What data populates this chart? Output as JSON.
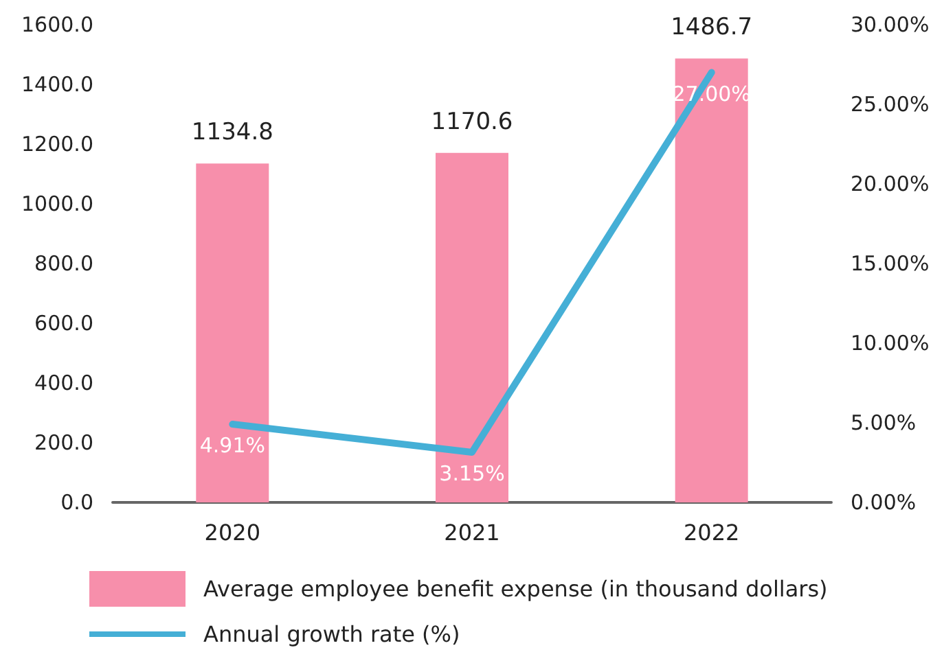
{
  "chart_data": {
    "type": "bar",
    "categories": [
      "2020",
      "2021",
      "2022"
    ],
    "series": [
      {
        "name": "Average employee benefit expense (in thousand dollars)",
        "color": "#f78fab",
        "values": [
          1134.8,
          1170.6,
          1486.7
        ],
        "data_labels": true
      },
      {
        "name": "Annual growth rate (%)",
        "type": "line",
        "axis": "y2",
        "color": "#45afd6",
        "values": [
          4.91,
          3.15,
          27.0
        ],
        "value_labels": [
          "4.91%",
          "3.15%",
          "27.00%"
        ],
        "marker": "none",
        "line_style": "solid"
      }
    ],
    "ylim": [
      0,
      1600
    ],
    "yticks": [
      {
        "value": 0,
        "label": "0.0"
      },
      {
        "value": 200,
        "label": "200.0"
      },
      {
        "value": 400,
        "label": "400.0"
      },
      {
        "value": 600,
        "label": "600.0"
      },
      {
        "value": 800,
        "label": "800.0"
      },
      {
        "value": 1000,
        "label": "1000.0"
      },
      {
        "value": 1200,
        "label": "1200.0"
      },
      {
        "value": 1400,
        "label": "1400.0"
      },
      {
        "value": 1600,
        "label": "1600.0"
      }
    ],
    "y2lim": [
      0,
      30
    ],
    "y2ticks": [
      {
        "value": 0,
        "label": "0.00%"
      },
      {
        "value": 5,
        "label": "5.00%"
      },
      {
        "value": 10,
        "label": "10.00%"
      },
      {
        "value": 15,
        "label": "15.00%"
      },
      {
        "value": 20,
        "label": "20.00%"
      },
      {
        "value": 25,
        "label": "25.00%"
      },
      {
        "value": 30,
        "label": "30.00%"
      }
    ],
    "grid": false,
    "legend": "bottom"
  }
}
